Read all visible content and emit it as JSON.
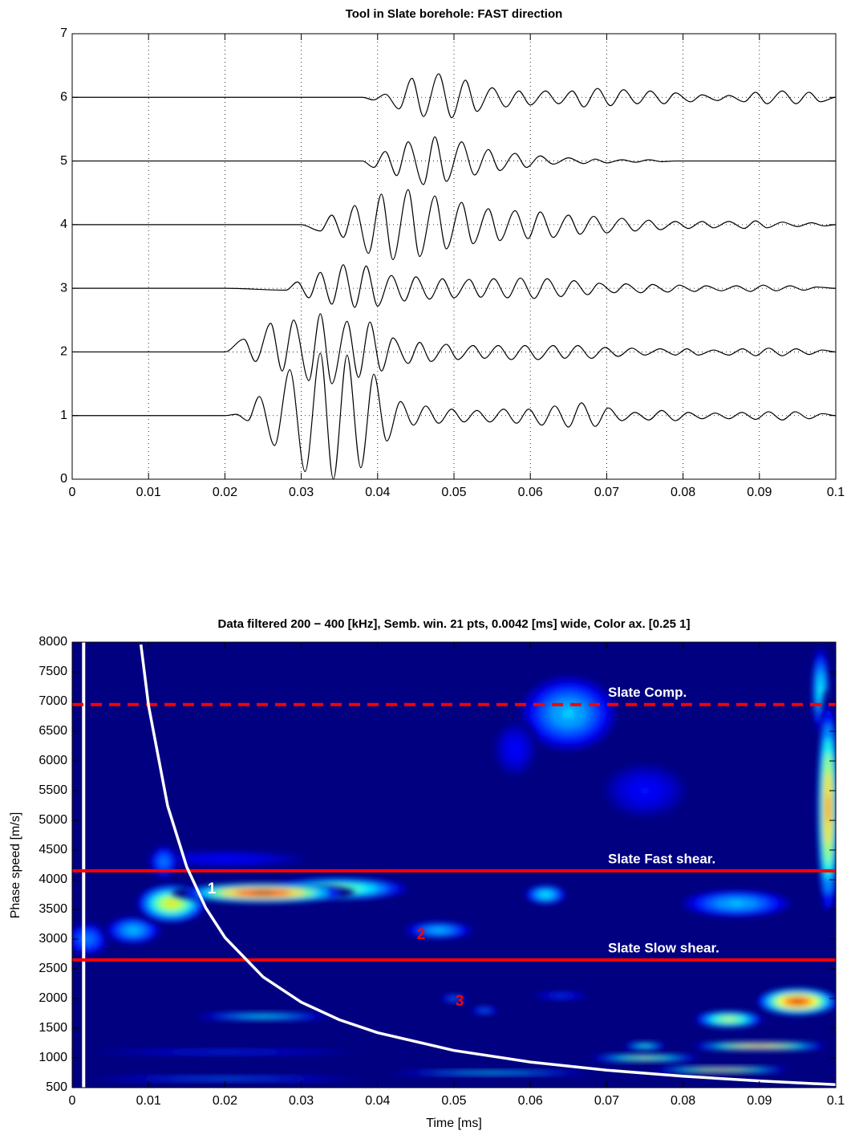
{
  "chart_data": [
    {
      "type": "line",
      "title": "Tool in Slate borehole: FAST direction",
      "xlim": [
        0,
        0.1
      ],
      "ylim": [
        0,
        7
      ],
      "xticks": [
        0,
        0.01,
        0.02,
        0.03,
        0.04,
        0.05,
        0.06,
        0.07,
        0.08,
        0.09,
        0.1
      ],
      "yticks": [
        0,
        1,
        2,
        3,
        4,
        5,
        6,
        7
      ],
      "grid": true,
      "series": [
        {
          "color": "#000000",
          "x": [
            0,
            0.01,
            0.02,
            0.0215,
            0.023,
            0.0245,
            0.0265,
            0.0285,
            0.0305,
            0.0325,
            0.0342,
            0.036,
            0.0378,
            0.0395,
            0.0412,
            0.043,
            0.0447,
            0.0463,
            0.048,
            0.0497,
            0.0513,
            0.053,
            0.0547,
            0.0565,
            0.0582,
            0.0598,
            0.0615,
            0.0632,
            0.065,
            0.0667,
            0.0685,
            0.0702,
            0.072,
            0.0737,
            0.0755,
            0.0772,
            0.079,
            0.0807,
            0.0825,
            0.0842,
            0.086,
            0.0877,
            0.0895,
            0.0912,
            0.093,
            0.0947,
            0.0965,
            0.0982,
            0.1
          ],
          "values": [
            1,
            1,
            1,
            1.02,
            0.92,
            1.3,
            0.53,
            1.72,
            0.12,
            1.98,
            0,
            1.95,
            0.18,
            1.65,
            0.6,
            1.22,
            0.85,
            1.15,
            0.88,
            1.1,
            0.9,
            1.08,
            0.9,
            1.1,
            0.88,
            1.1,
            0.85,
            1.15,
            0.82,
            1.2,
            0.83,
            1.12,
            0.92,
            1.05,
            0.93,
            1.08,
            0.92,
            1.05,
            0.95,
            1.04,
            0.95,
            1.05,
            0.94,
            1.06,
            0.93,
            1.06,
            0.95,
            1.03,
            1
          ]
        },
        {
          "color": "#000000",
          "x": [
            0,
            0.01,
            0.02,
            0.0225,
            0.024,
            0.026,
            0.0275,
            0.029,
            0.031,
            0.0325,
            0.034,
            0.036,
            0.0375,
            0.039,
            0.0405,
            0.042,
            0.044,
            0.0455,
            0.047,
            0.049,
            0.0505,
            0.0525,
            0.054,
            0.0558,
            0.0575,
            0.0593,
            0.061,
            0.063,
            0.0645,
            0.0662,
            0.068,
            0.0698,
            0.0715,
            0.0733,
            0.075,
            0.077,
            0.079,
            0.0805,
            0.082,
            0.084,
            0.086,
            0.0878,
            0.0895,
            0.0912,
            0.093,
            0.0948,
            0.0965,
            0.0982,
            0.1
          ],
          "values": [
            2,
            2,
            2,
            2.2,
            1.85,
            2.45,
            1.7,
            2.5,
            1.55,
            2.6,
            1.5,
            2.48,
            1.6,
            2.47,
            1.7,
            2.22,
            1.82,
            2.15,
            1.85,
            2.12,
            1.88,
            2.1,
            1.9,
            2.1,
            1.88,
            2.1,
            1.88,
            2.1,
            1.9,
            2.1,
            1.9,
            2.07,
            1.93,
            2.06,
            1.95,
            2.05,
            1.95,
            2.05,
            1.95,
            2.03,
            1.95,
            2.05,
            1.94,
            2.06,
            1.94,
            2.05,
            1.96,
            2.03,
            2
          ]
        },
        {
          "color": "#000000",
          "x": [
            0,
            0.01,
            0.02,
            0.028,
            0.0295,
            0.031,
            0.0325,
            0.034,
            0.0355,
            0.037,
            0.0385,
            0.04,
            0.0418,
            0.0435,
            0.045,
            0.0468,
            0.0485,
            0.05,
            0.052,
            0.0535,
            0.0552,
            0.057,
            0.0587,
            0.0605,
            0.0622,
            0.064,
            0.0657,
            0.0675,
            0.069,
            0.071,
            0.0725,
            0.0745,
            0.076,
            0.078,
            0.0795,
            0.0815,
            0.083,
            0.085,
            0.087,
            0.0888,
            0.0905,
            0.0922,
            0.094,
            0.0958,
            0.0975,
            0.1
          ],
          "values": [
            3,
            3,
            3,
            2.97,
            3.1,
            2.85,
            3.25,
            2.75,
            3.37,
            2.7,
            3.35,
            2.72,
            3.2,
            2.8,
            3.18,
            2.83,
            3.15,
            2.85,
            3.14,
            2.86,
            3.15,
            2.85,
            3.16,
            2.84,
            3.15,
            2.87,
            3.12,
            2.9,
            3.08,
            2.93,
            3.07,
            2.93,
            3.06,
            2.94,
            3.05,
            2.95,
            3.04,
            2.96,
            3.04,
            2.95,
            3.05,
            2.96,
            3.04,
            2.97,
            3.02,
            3
          ]
        },
        {
          "color": "#000000",
          "x": [
            0,
            0.01,
            0.02,
            0.03,
            0.0325,
            0.034,
            0.0355,
            0.037,
            0.0388,
            0.0405,
            0.042,
            0.044,
            0.0455,
            0.0475,
            0.049,
            0.051,
            0.0525,
            0.0545,
            0.056,
            0.058,
            0.0597,
            0.0613,
            0.063,
            0.065,
            0.0665,
            0.0683,
            0.07,
            0.072,
            0.0737,
            0.0755,
            0.077,
            0.079,
            0.0807,
            0.0825,
            0.084,
            0.086,
            0.088,
            0.0895,
            0.091,
            0.093,
            0.095,
            0.0968,
            0.0985,
            0.1
          ],
          "values": [
            4,
            4,
            4,
            4,
            3.9,
            4.15,
            3.8,
            4.3,
            3.55,
            4.48,
            3.45,
            4.55,
            3.5,
            4.45,
            3.62,
            4.35,
            3.7,
            4.25,
            3.75,
            4.22,
            3.78,
            4.2,
            3.8,
            4.15,
            3.85,
            4.13,
            3.87,
            4.1,
            3.9,
            4.07,
            3.92,
            4.05,
            3.94,
            4.05,
            3.95,
            4.05,
            3.94,
            4.06,
            3.95,
            4.04,
            3.97,
            4.03,
            3.98,
            4
          ]
        },
        {
          "color": "#000000",
          "x": [
            0,
            0.01,
            0.02,
            0.038,
            0.0395,
            0.041,
            0.0425,
            0.044,
            0.046,
            0.0475,
            0.049,
            0.051,
            0.0527,
            0.0545,
            0.056,
            0.058,
            0.0595,
            0.0613,
            0.063,
            0.065,
            0.067,
            0.0685,
            0.07,
            0.072,
            0.0738,
            0.0755,
            0.0772,
            0.079,
            0.1
          ],
          "values": [
            5,
            5,
            5,
            5,
            4.9,
            5.15,
            4.77,
            5.3,
            4.63,
            5.38,
            4.68,
            5.3,
            4.78,
            5.18,
            4.85,
            5.12,
            4.9,
            5.08,
            4.95,
            5.05,
            4.96,
            5.03,
            4.97,
            5.02,
            4.98,
            5.02,
            4.99,
            5,
            5
          ]
        },
        {
          "color": "#000000",
          "x": [
            0,
            0.01,
            0.02,
            0.038,
            0.0395,
            0.041,
            0.0428,
            0.0445,
            0.046,
            0.048,
            0.0497,
            0.0515,
            0.053,
            0.055,
            0.0568,
            0.0585,
            0.06,
            0.062,
            0.0637,
            0.0655,
            0.067,
            0.0688,
            0.0705,
            0.0722,
            0.074,
            0.0757,
            0.0775,
            0.079,
            0.081,
            0.0825,
            0.0845,
            0.086,
            0.088,
            0.0895,
            0.091,
            0.093,
            0.0948,
            0.0965,
            0.098,
            0.1
          ],
          "values": [
            6,
            6,
            6,
            6,
            5.96,
            6.05,
            5.82,
            6.3,
            5.7,
            6.37,
            5.68,
            6.27,
            5.78,
            6.15,
            5.85,
            6.1,
            5.88,
            6.1,
            5.9,
            6.1,
            5.85,
            6.14,
            5.87,
            6.12,
            5.9,
            6.1,
            5.9,
            6.07,
            5.93,
            6.04,
            5.95,
            6.03,
            5.93,
            6.08,
            5.9,
            6.1,
            5.9,
            6.08,
            5.93,
            6
          ]
        }
      ]
    },
    {
      "type": "heatmap",
      "title": "Data filtered 200 − 400 [kHz],  Semb. win. 21 pts, 0.0042 [ms] wide, Color ax. [0.25          1]",
      "xlabel": "Time [ms]",
      "ylabel": "Phase speed [m/s]",
      "xlim": [
        0,
        0.1
      ],
      "ylim": [
        500,
        8000
      ],
      "xticks": [
        0,
        0.01,
        0.02,
        0.03,
        0.04,
        0.05,
        0.06,
        0.07,
        0.08,
        0.09,
        0.1
      ],
      "yticks": [
        500,
        1000,
        1500,
        2000,
        2500,
        3000,
        3500,
        4000,
        4500,
        5000,
        5500,
        6000,
        6500,
        7000,
        7500,
        8000
      ],
      "grid": true,
      "colormap": "jet",
      "clim": [
        0.25,
        1
      ],
      "blobs": [
        {
          "x": 0.02,
          "y": 4350,
          "dx": 0.012,
          "dy": 150,
          "value": 0.35
        },
        {
          "x": 0.002,
          "y": 3000,
          "dx": 0.003,
          "dy": 300,
          "value": 0.45
        },
        {
          "x": 0.008,
          "y": 3150,
          "dx": 0.004,
          "dy": 250,
          "value": 0.5
        },
        {
          "x": 0.012,
          "y": 4300,
          "dx": 0.002,
          "dy": 300,
          "value": 0.45
        },
        {
          "x": 0.035,
          "y": 3850,
          "dx": 0.01,
          "dy": 200,
          "value": 0.65
        },
        {
          "x": 0.013,
          "y": 3600,
          "dx": 0.005,
          "dy": 350,
          "value": 0.75
        },
        {
          "x": 0.025,
          "y": 3780,
          "dx": 0.012,
          "dy": 180,
          "value": 1
        },
        {
          "x": 0.065,
          "y": 6800,
          "dx": 0.007,
          "dy": 700,
          "value": 0.5
        },
        {
          "x": 0.058,
          "y": 6200,
          "dx": 0.003,
          "dy": 500,
          "value": 0.35
        },
        {
          "x": 0.075,
          "y": 5500,
          "dx": 0.006,
          "dy": 500,
          "value": 0.35
        },
        {
          "x": 0.062,
          "y": 3750,
          "dx": 0.003,
          "dy": 170,
          "value": 0.55
        },
        {
          "x": 0.048,
          "y": 3150,
          "dx": 0.005,
          "dy": 150,
          "value": 0.5
        },
        {
          "x": 0.087,
          "y": 3600,
          "dx": 0.008,
          "dy": 250,
          "value": 0.5
        },
        {
          "x": 0.098,
          "y": 7200,
          "dx": 0.0012,
          "dy": 800,
          "value": 0.55
        },
        {
          "x": 0.099,
          "y": 5200,
          "dx": 0.0015,
          "dy": 2000,
          "value": 0.85
        },
        {
          "x": 0.086,
          "y": 1650,
          "dx": 0.005,
          "dy": 150,
          "value": 0.7
        },
        {
          "x": 0.095,
          "y": 1950,
          "dx": 0.006,
          "dy": 250,
          "value": 0.95
        },
        {
          "x": 0.025,
          "y": 1700,
          "dx": 0.01,
          "dy": 60,
          "value": 0.55
        },
        {
          "x": 0.02,
          "y": 1100,
          "dx": 0.02,
          "dy": 40,
          "value": 0.4
        },
        {
          "x": 0.02,
          "y": 650,
          "dx": 0.02,
          "dy": 40,
          "value": 0.45
        },
        {
          "x": 0.055,
          "y": 750,
          "dx": 0.015,
          "dy": 40,
          "value": 0.55
        },
        {
          "x": 0.075,
          "y": 1000,
          "dx": 0.008,
          "dy": 60,
          "value": 0.7
        },
        {
          "x": 0.085,
          "y": 800,
          "dx": 0.01,
          "dy": 50,
          "value": 0.8
        },
        {
          "x": 0.09,
          "y": 1200,
          "dx": 0.01,
          "dy": 70,
          "value": 0.85
        },
        {
          "x": 0.05,
          "y": 2000,
          "dx": 0.002,
          "dy": 60,
          "value": 0.45
        },
        {
          "x": 0.054,
          "y": 1800,
          "dx": 0.002,
          "dy": 60,
          "value": 0.45
        },
        {
          "x": 0.064,
          "y": 2050,
          "dx": 0.004,
          "dy": 60,
          "value": 0.4
        },
        {
          "x": 0.075,
          "y": 1200,
          "dx": 0.003,
          "dy": 60,
          "value": 0.6
        }
      ],
      "reference_lines": [
        {
          "label": "Slate Comp.",
          "value": 6950,
          "color": "#ff0000",
          "dashed": true
        },
        {
          "label": "Slate Fast shear.",
          "value": 4150,
          "color": "#ff0000",
          "dashed": false
        },
        {
          "label": "Slate Slow shear.",
          "value": 2650,
          "color": "#ff0000",
          "dashed": false
        }
      ],
      "curve": {
        "color": "#ffffff",
        "x": [
          0.009,
          0.01,
          0.0125,
          0.015,
          0.0175,
          0.02,
          0.025,
          0.03,
          0.035,
          0.04,
          0.05,
          0.06,
          0.07,
          0.08,
          0.09,
          0.1
        ],
        "values": [
          7960,
          6933,
          5244,
          4216,
          3526,
          3029,
          2364,
          1938,
          1642,
          1425,
          1126,
          931,
          794,
          692,
          613,
          550
        ]
      },
      "vertical_line": {
        "x": 0.0015,
        "color": "#ffffff"
      },
      "annotations": [
        {
          "text": "1",
          "color": "#ffffff"
        },
        {
          "text": "2",
          "color": "#ff0000"
        },
        {
          "text": "3",
          "color": "#ff0000"
        }
      ]
    }
  ]
}
